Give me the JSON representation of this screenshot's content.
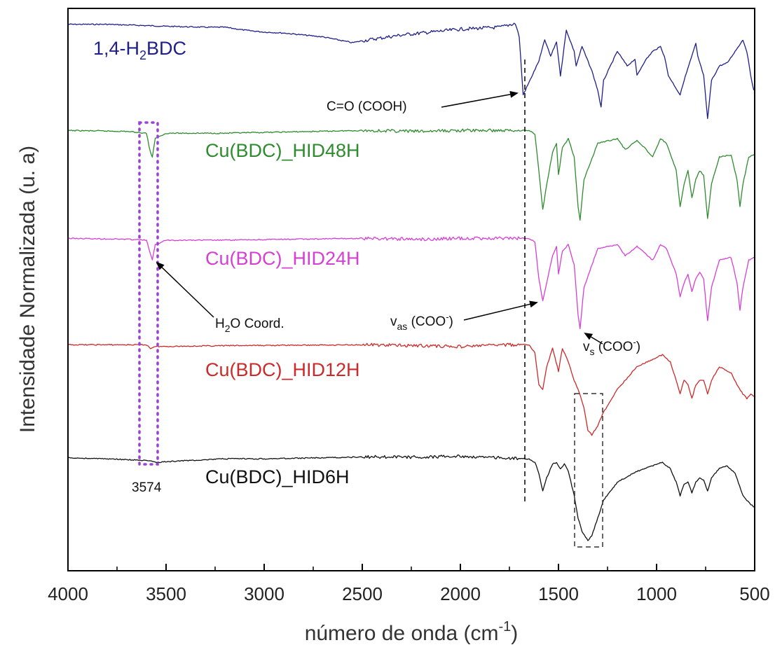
{
  "chart_data": {
    "type": "line",
    "xlabel": "número de onda (cm",
    "xlabel_sup": "-1",
    "xlabel_end": ")",
    "ylabel": "Intensidade Normalizada (u. a)",
    "xlim": [
      4000,
      500
    ],
    "x_reversed": true,
    "y_ticks_shown": false,
    "grid": false,
    "x_ticks": [
      4000,
      3500,
      3000,
      2500,
      2000,
      1500,
      1000,
      500
    ],
    "x_tick_labels": [
      "4000",
      "3500",
      "3000",
      "2500",
      "2000",
      "1500",
      "1000",
      "500"
    ],
    "series": [
      {
        "name": "1,4-H",
        "name_sub": "2",
        "name_end": "BDC",
        "color": "#1f1f8a",
        "points": [
          [
            4000,
            0.02
          ],
          [
            3800,
            0.02
          ],
          [
            3500,
            0.04
          ],
          [
            3300,
            0.05
          ],
          [
            3200,
            0.05
          ],
          [
            3100,
            0.08
          ],
          [
            3000,
            0.1
          ],
          [
            2900,
            0.11
          ],
          [
            2800,
            0.13
          ],
          [
            2700,
            0.15
          ],
          [
            2600,
            0.19
          ],
          [
            2550,
            0.21
          ],
          [
            2500,
            0.19
          ],
          [
            2400,
            0.16
          ],
          [
            2300,
            0.13
          ],
          [
            2200,
            0.11
          ],
          [
            2100,
            0.09
          ],
          [
            2000,
            0.07
          ],
          [
            1900,
            0.06
          ],
          [
            1800,
            0.05
          ],
          [
            1720,
            0.01
          ],
          [
            1700,
            0.15
          ],
          [
            1680,
            0.75
          ],
          [
            1650,
            0.62
          ],
          [
            1600,
            0.4
          ],
          [
            1570,
            0.18
          ],
          [
            1540,
            0.35
          ],
          [
            1510,
            0.2
          ],
          [
            1490,
            0.55
          ],
          [
            1460,
            0.08
          ],
          [
            1420,
            0.3
          ],
          [
            1410,
            0.45
          ],
          [
            1380,
            0.25
          ],
          [
            1330,
            0.5
          ],
          [
            1300,
            0.7
          ],
          [
            1283,
            0.88
          ],
          [
            1270,
            0.6
          ],
          [
            1200,
            0.3
          ],
          [
            1150,
            0.45
          ],
          [
            1110,
            0.38
          ],
          [
            1100,
            0.55
          ],
          [
            1060,
            0.4
          ],
          [
            1020,
            0.3
          ],
          [
            980,
            0.25
          ],
          [
            960,
            0.35
          ],
          [
            940,
            0.55
          ],
          [
            880,
            0.75
          ],
          [
            860,
            0.6
          ],
          [
            800,
            0.22
          ],
          [
            790,
            0.35
          ],
          [
            760,
            0.55
          ],
          [
            740,
            1.0
          ],
          [
            720,
            0.6
          ],
          [
            680,
            0.45
          ],
          [
            640,
            0.42
          ],
          [
            600,
            0.3
          ],
          [
            560,
            0.18
          ],
          [
            540,
            0.3
          ],
          [
            520,
            0.55
          ],
          [
            505,
            0.7
          ],
          [
            500,
            0.68
          ]
        ]
      },
      {
        "name": "Cu(BDC)_HID48H",
        "color": "#2e8b2e",
        "points": [
          [
            4000,
            0.01
          ],
          [
            3700,
            0.02
          ],
          [
            3600,
            0.04
          ],
          [
            3580,
            0.25
          ],
          [
            3570,
            0.3
          ],
          [
            3555,
            0.1
          ],
          [
            3500,
            0.04
          ],
          [
            3200,
            0.04
          ],
          [
            2500,
            0.01
          ],
          [
            2200,
            0.02
          ],
          [
            2000,
            0.01
          ],
          [
            1800,
            0.01
          ],
          [
            1650,
            0.01
          ],
          [
            1620,
            0.05
          ],
          [
            1600,
            0.45
          ],
          [
            1580,
            0.88
          ],
          [
            1560,
            0.6
          ],
          [
            1530,
            0.25
          ],
          [
            1510,
            0.15
          ],
          [
            1500,
            0.5
          ],
          [
            1480,
            0.2
          ],
          [
            1450,
            0.1
          ],
          [
            1420,
            0.3
          ],
          [
            1400,
            0.85
          ],
          [
            1390,
            1.0
          ],
          [
            1370,
            0.55
          ],
          [
            1300,
            0.15
          ],
          [
            1200,
            0.1
          ],
          [
            1160,
            0.22
          ],
          [
            1100,
            0.12
          ],
          [
            1070,
            0.18
          ],
          [
            1020,
            0.3
          ],
          [
            980,
            0.1
          ],
          [
            950,
            0.15
          ],
          [
            900,
            0.45
          ],
          [
            880,
            0.85
          ],
          [
            860,
            0.6
          ],
          [
            840,
            0.45
          ],
          [
            820,
            0.75
          ],
          [
            800,
            0.55
          ],
          [
            780,
            0.45
          ],
          [
            760,
            0.5
          ],
          [
            740,
            0.98
          ],
          [
            720,
            0.6
          ],
          [
            680,
            0.3
          ],
          [
            620,
            0.28
          ],
          [
            590,
            0.55
          ],
          [
            575,
            0.85
          ],
          [
            560,
            0.6
          ],
          [
            530,
            0.3
          ],
          [
            500,
            0.28
          ]
        ]
      },
      {
        "name": "Cu(BDC)_HID24H",
        "color": "#d63fd6",
        "points": [
          [
            4000,
            0.01
          ],
          [
            3700,
            0.02
          ],
          [
            3600,
            0.03
          ],
          [
            3580,
            0.18
          ],
          [
            3570,
            0.25
          ],
          [
            3555,
            0.08
          ],
          [
            3500,
            0.03
          ],
          [
            3200,
            0.03
          ],
          [
            2500,
            0.01
          ],
          [
            2200,
            0.02
          ],
          [
            2000,
            0.01
          ],
          [
            1800,
            0.01
          ],
          [
            1650,
            0.01
          ],
          [
            1620,
            0.05
          ],
          [
            1600,
            0.45
          ],
          [
            1580,
            0.7
          ],
          [
            1560,
            0.5
          ],
          [
            1530,
            0.2
          ],
          [
            1510,
            0.1
          ],
          [
            1500,
            0.4
          ],
          [
            1480,
            0.15
          ],
          [
            1450,
            0.08
          ],
          [
            1420,
            0.3
          ],
          [
            1400,
            0.85
          ],
          [
            1390,
            1.0
          ],
          [
            1370,
            0.55
          ],
          [
            1300,
            0.12
          ],
          [
            1200,
            0.08
          ],
          [
            1160,
            0.2
          ],
          [
            1100,
            0.1
          ],
          [
            1070,
            0.15
          ],
          [
            1020,
            0.25
          ],
          [
            980,
            0.08
          ],
          [
            950,
            0.12
          ],
          [
            900,
            0.4
          ],
          [
            880,
            0.65
          ],
          [
            860,
            0.5
          ],
          [
            840,
            0.4
          ],
          [
            820,
            0.6
          ],
          [
            800,
            0.45
          ],
          [
            780,
            0.38
          ],
          [
            760,
            0.45
          ],
          [
            740,
            0.92
          ],
          [
            720,
            0.55
          ],
          [
            680,
            0.25
          ],
          [
            620,
            0.22
          ],
          [
            590,
            0.5
          ],
          [
            575,
            0.8
          ],
          [
            560,
            0.55
          ],
          [
            530,
            0.25
          ],
          [
            500,
            0.22
          ]
        ]
      },
      {
        "name": "Cu(BDC)_HID12H",
        "color": "#cc2a2a",
        "points": [
          [
            4000,
            0.01
          ],
          [
            3700,
            0.01
          ],
          [
            3600,
            0.01
          ],
          [
            3580,
            0.05
          ],
          [
            3560,
            0.03
          ],
          [
            3200,
            0.02
          ],
          [
            2500,
            0.01
          ],
          [
            2200,
            0.02
          ],
          [
            2000,
            0.03
          ],
          [
            1800,
            0.01
          ],
          [
            1650,
            0.01
          ],
          [
            1620,
            0.1
          ],
          [
            1600,
            0.45
          ],
          [
            1580,
            0.5
          ],
          [
            1560,
            0.25
          ],
          [
            1530,
            0.05
          ],
          [
            1500,
            0.3
          ],
          [
            1480,
            0.05
          ],
          [
            1450,
            0.2
          ],
          [
            1420,
            0.4
          ],
          [
            1400,
            0.5
          ],
          [
            1370,
            0.7
          ],
          [
            1350,
            0.95
          ],
          [
            1330,
            1.0
          ],
          [
            1300,
            0.9
          ],
          [
            1270,
            0.75
          ],
          [
            1200,
            0.5
          ],
          [
            1100,
            0.25
          ],
          [
            1000,
            0.15
          ],
          [
            970,
            0.12
          ],
          [
            930,
            0.2
          ],
          [
            900,
            0.4
          ],
          [
            880,
            0.55
          ],
          [
            860,
            0.4
          ],
          [
            840,
            0.45
          ],
          [
            820,
            0.6
          ],
          [
            800,
            0.45
          ],
          [
            780,
            0.4
          ],
          [
            760,
            0.4
          ],
          [
            740,
            0.55
          ],
          [
            720,
            0.4
          ],
          [
            680,
            0.25
          ],
          [
            620,
            0.32
          ],
          [
            590,
            0.45
          ],
          [
            560,
            0.55
          ],
          [
            540,
            0.6
          ],
          [
            520,
            0.55
          ],
          [
            500,
            0.58
          ]
        ]
      },
      {
        "name": "Cu(BDC)_HID6H",
        "color": "#111111",
        "points": [
          [
            4000,
            0.03
          ],
          [
            3800,
            0.04
          ],
          [
            3600,
            0.06
          ],
          [
            3550,
            0.08
          ],
          [
            3400,
            0.06
          ],
          [
            3200,
            0.04
          ],
          [
            3000,
            0.04
          ],
          [
            2500,
            0.02
          ],
          [
            2200,
            0.02
          ],
          [
            2000,
            0.01
          ],
          [
            1800,
            0.03
          ],
          [
            1650,
            0.04
          ],
          [
            1620,
            0.08
          ],
          [
            1600,
            0.2
          ],
          [
            1580,
            0.4
          ],
          [
            1560,
            0.25
          ],
          [
            1530,
            0.1
          ],
          [
            1510,
            0.08
          ],
          [
            1490,
            0.15
          ],
          [
            1470,
            0.1
          ],
          [
            1450,
            0.18
          ],
          [
            1420,
            0.45
          ],
          [
            1400,
            0.7
          ],
          [
            1380,
            0.85
          ],
          [
            1350,
            0.95
          ],
          [
            1330,
            0.9
          ],
          [
            1300,
            0.7
          ],
          [
            1270,
            0.5
          ],
          [
            1200,
            0.3
          ],
          [
            1100,
            0.18
          ],
          [
            1000,
            0.1
          ],
          [
            970,
            0.08
          ],
          [
            930,
            0.15
          ],
          [
            900,
            0.3
          ],
          [
            880,
            0.45
          ],
          [
            860,
            0.32
          ],
          [
            840,
            0.3
          ],
          [
            820,
            0.42
          ],
          [
            800,
            0.3
          ],
          [
            780,
            0.25
          ],
          [
            760,
            0.28
          ],
          [
            740,
            0.4
          ],
          [
            720,
            0.25
          ],
          [
            680,
            0.15
          ],
          [
            640,
            0.12
          ],
          [
            600,
            0.2
          ],
          [
            560,
            0.45
          ],
          [
            540,
            0.5
          ],
          [
            520,
            0.55
          ],
          [
            500,
            0.58
          ]
        ]
      }
    ],
    "annotations": {
      "co_cooh": "C=O (COOH)",
      "h2o_pre": "H",
      "h2o_sub": "2",
      "h2o_post": "O Coord.",
      "vas_pre": "v",
      "vas_sub": "as",
      "vas_post": " (COO",
      "vas_sup": "-",
      "vas_end": ")",
      "vs_pre": "v",
      "vs_sub": "s",
      "vs_post": " (COO",
      "vs_sup": "-",
      "vs_end": ")",
      "peak_3574": "3574"
    }
  }
}
